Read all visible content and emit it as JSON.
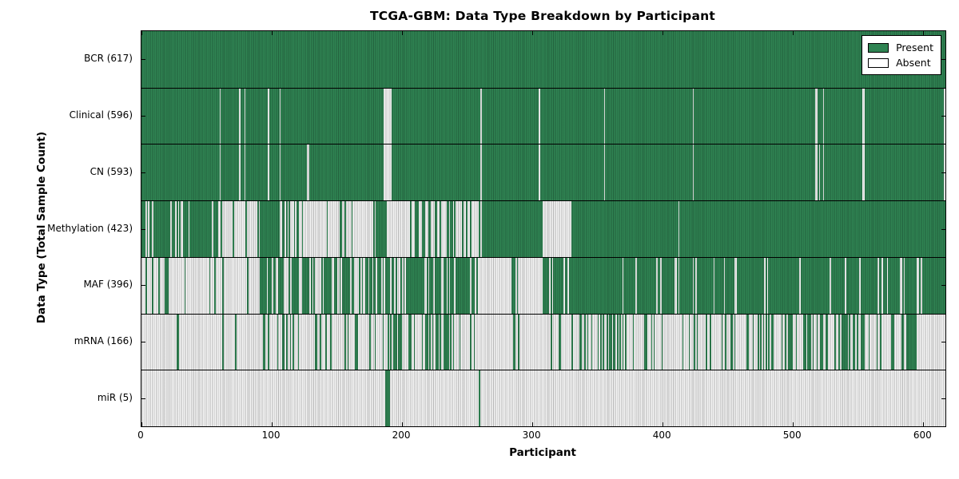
{
  "figure": {
    "title": "TCGA-GBM: Data Type Breakdown by Participant",
    "xlabel": "Participant",
    "ylabel": "Data Type (Total Sample Count)"
  },
  "legend": {
    "items": [
      {
        "label": "Present",
        "color": "#2F8352"
      },
      {
        "label": "Absent",
        "color": "#FFFFFF"
      }
    ]
  },
  "colors": {
    "present": "#2F8352",
    "absent": "#F3F3F3",
    "axis": "#000000"
  },
  "chart_data": {
    "type": "heatmap",
    "title": "TCGA-GBM: Data Type Breakdown by Participant",
    "xlabel": "Participant",
    "ylabel": "Data Type (Total Sample Count)",
    "legend_entries": [
      "Present",
      "Absent"
    ],
    "legend_position": "upper right",
    "grid": false,
    "x_range": [
      0,
      617
    ],
    "n_participants": 617,
    "x_ticks": [
      0,
      100,
      200,
      300,
      400,
      500,
      600
    ],
    "segments_encoding": "[start_participant, end_participant_exclusive, fraction_present] where 1=all present (green), 0=all absent (white), intermediate=mixed striping read from plot",
    "rows": [
      {
        "data_type": "BCR",
        "label": "BCR (617)",
        "present_count": 617,
        "segments": [
          [
            0,
            617,
            1
          ]
        ]
      },
      {
        "data_type": "Clinical",
        "label": "Clinical (596)",
        "present_count": 596,
        "segments": [
          [
            0,
            60,
            1
          ],
          [
            60,
            61,
            0
          ],
          [
            61,
            75,
            1
          ],
          [
            75,
            76,
            0
          ],
          [
            76,
            79,
            1
          ],
          [
            79,
            80,
            0
          ],
          [
            80,
            97,
            1
          ],
          [
            97,
            98,
            0
          ],
          [
            98,
            106,
            1
          ],
          [
            106,
            107,
            0
          ],
          [
            107,
            186,
            1
          ],
          [
            186,
            192,
            0
          ],
          [
            192,
            260,
            1
          ],
          [
            260,
            261,
            0
          ],
          [
            261,
            305,
            1
          ],
          [
            305,
            306,
            0
          ],
          [
            306,
            355,
            1
          ],
          [
            355,
            356,
            0
          ],
          [
            356,
            423,
            1
          ],
          [
            423,
            424,
            0
          ],
          [
            424,
            517,
            1
          ],
          [
            517,
            519,
            0
          ],
          [
            519,
            523,
            1
          ],
          [
            523,
            524,
            0
          ],
          [
            524,
            553,
            1
          ],
          [
            553,
            555,
            0
          ],
          [
            555,
            616,
            1
          ],
          [
            616,
            617,
            0
          ]
        ]
      },
      {
        "data_type": "CN",
        "label": "CN (593)",
        "present_count": 593,
        "segments": [
          [
            0,
            60,
            1
          ],
          [
            60,
            61,
            0
          ],
          [
            61,
            75,
            1
          ],
          [
            75,
            76,
            0
          ],
          [
            76,
            79,
            1
          ],
          [
            79,
            80,
            0
          ],
          [
            80,
            97,
            1
          ],
          [
            97,
            98,
            0
          ],
          [
            98,
            106,
            1
          ],
          [
            106,
            107,
            0
          ],
          [
            107,
            127,
            1
          ],
          [
            127,
            129,
            0
          ],
          [
            129,
            186,
            1
          ],
          [
            186,
            192,
            0
          ],
          [
            192,
            260,
            1
          ],
          [
            260,
            261,
            0
          ],
          [
            261,
            305,
            1
          ],
          [
            305,
            306,
            0
          ],
          [
            306,
            355,
            1
          ],
          [
            355,
            356,
            0
          ],
          [
            356,
            423,
            1
          ],
          [
            423,
            424,
            0
          ],
          [
            424,
            517,
            1
          ],
          [
            517,
            519,
            0
          ],
          [
            519,
            520,
            1
          ],
          [
            520,
            521,
            0
          ],
          [
            521,
            523,
            1
          ],
          [
            523,
            524,
            0
          ],
          [
            524,
            553,
            1
          ],
          [
            553,
            555,
            0
          ],
          [
            555,
            616,
            1
          ],
          [
            616,
            617,
            0
          ]
        ]
      },
      {
        "data_type": "Methylation",
        "label": "Methylation (423)",
        "present_count": 423,
        "segments": [
          [
            0,
            59,
            0.75
          ],
          [
            59,
            91,
            0.1
          ],
          [
            91,
            106,
            1
          ],
          [
            106,
            131,
            0.45
          ],
          [
            131,
            141,
            0
          ],
          [
            141,
            162,
            0.35
          ],
          [
            162,
            180,
            0.15
          ],
          [
            180,
            188,
            1
          ],
          [
            188,
            204,
            0
          ],
          [
            204,
            243,
            0.3
          ],
          [
            243,
            261,
            0.1
          ],
          [
            261,
            308,
            1
          ],
          [
            308,
            330,
            0
          ],
          [
            330,
            412,
            1
          ],
          [
            412,
            413,
            0
          ],
          [
            413,
            617,
            1
          ]
        ]
      },
      {
        "data_type": "MAF",
        "label": "MAF (396)",
        "present_count": 396,
        "segments": [
          [
            0,
            18,
            0.06
          ],
          [
            18,
            21,
            1
          ],
          [
            21,
            90,
            0.05
          ],
          [
            90,
            130,
            0.65
          ],
          [
            130,
            170,
            0.5
          ],
          [
            170,
            210,
            0.7
          ],
          [
            210,
            259,
            0.8
          ],
          [
            259,
            284,
            0.04
          ],
          [
            284,
            287,
            1
          ],
          [
            287,
            308,
            0.05
          ],
          [
            308,
            617,
            0.9
          ]
        ]
      },
      {
        "data_type": "mRNA",
        "label": "mRNA (166)",
        "present_count": 166,
        "segments": [
          [
            0,
            27,
            0
          ],
          [
            27,
            29,
            1
          ],
          [
            29,
            90,
            0.02
          ],
          [
            90,
            185,
            0.25
          ],
          [
            185,
            240,
            0.45
          ],
          [
            240,
            260,
            0.3
          ],
          [
            260,
            285,
            0
          ],
          [
            285,
            287,
            1
          ],
          [
            287,
            330,
            0.05
          ],
          [
            330,
            430,
            0.25
          ],
          [
            430,
            500,
            0.3
          ],
          [
            500,
            560,
            0.45
          ],
          [
            560,
            588,
            0.25
          ],
          [
            588,
            595,
            1
          ],
          [
            595,
            617,
            0.05
          ]
        ]
      },
      {
        "data_type": "miR",
        "label": "miR (5)",
        "present_count": 5,
        "segments": [
          [
            0,
            187,
            0
          ],
          [
            187,
            191,
            1
          ],
          [
            191,
            259,
            0
          ],
          [
            259,
            260,
            1
          ],
          [
            260,
            617,
            0
          ]
        ]
      }
    ]
  }
}
